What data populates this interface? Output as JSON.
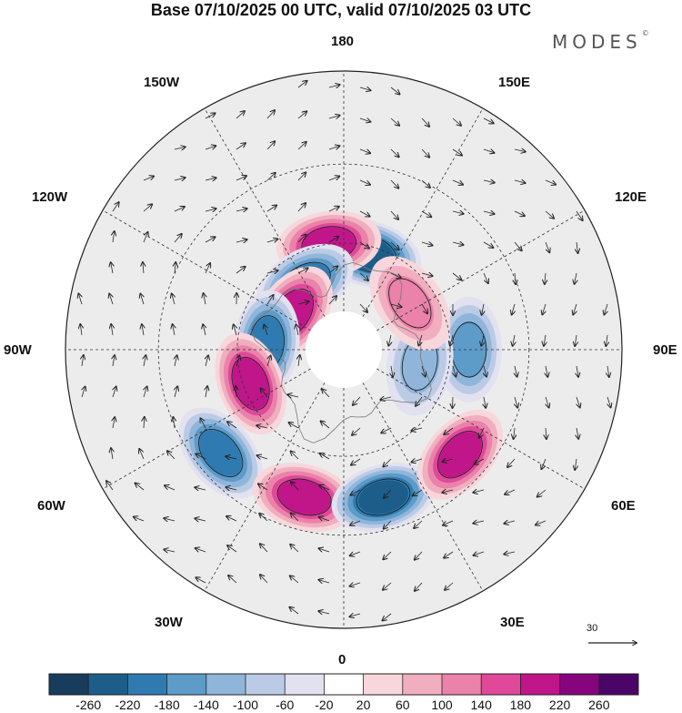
{
  "title": "Base 07/10/2025 00 UTC, valid 07/10/2025 03 UTC",
  "brand": {
    "text": "MODES",
    "mark": "©"
  },
  "longitude_labels": {
    "lon_180": "180",
    "lon_150w": "150W",
    "lon_150e": "150E",
    "lon_120w": "120W",
    "lon_120e": "120E",
    "lon_90w": "90W",
    "lon_90e": "90E",
    "lon_60w": "60W",
    "lon_60e": "60E",
    "lon_30w": "30W",
    "lon_30e": "30E",
    "lon_0": "0"
  },
  "wind_scale": {
    "label": "30",
    "icon": "arrow-right-icon"
  },
  "colorbar": {
    "ticks": [
      "-260",
      "-220",
      "-180",
      "-140",
      "-100",
      "-60",
      "-20",
      "20",
      "60",
      "100",
      "140",
      "180",
      "220",
      "260"
    ],
    "colors": [
      "#173c5c",
      "#1d5d8a",
      "#2f7bb1",
      "#5d9bc9",
      "#8fb6da",
      "#bccbe5",
      "#e1e1f0",
      "#ffffff",
      "#f7d7db",
      "#f0aebf",
      "#ea82a9",
      "#e0499a",
      "#c0168a",
      "#86057e",
      "#4b0468"
    ]
  },
  "anomaly_centers": [
    {
      "id": "neg-east-siberia",
      "lon": 165,
      "lat": 62,
      "value": -220
    },
    {
      "id": "pos-chukotka",
      "lon": -172,
      "lat": 60,
      "value": 180
    },
    {
      "id": "neg-alaska",
      "lon": -150,
      "lat": 68,
      "value": -180
    },
    {
      "id": "pos-beaufort",
      "lon": -125,
      "lat": 72,
      "value": 200
    },
    {
      "id": "neg-canada",
      "lon": -95,
      "lat": 68,
      "value": -180
    },
    {
      "id": "pos-labrador",
      "lon": -70,
      "lat": 62,
      "value": 180
    },
    {
      "id": "neg-atlantic-w",
      "lon": -50,
      "lat": 46,
      "value": -180
    },
    {
      "id": "pos-atlantic",
      "lon": -15,
      "lat": 48,
      "value": 180
    },
    {
      "id": "neg-scandinavia",
      "lon": 15,
      "lat": 48,
      "value": -220
    },
    {
      "id": "pos-russia",
      "lon": 48,
      "lat": 47,
      "value": 200
    },
    {
      "id": "neg-siberia-w",
      "lon": 90,
      "lat": 55,
      "value": -140
    },
    {
      "id": "neg-siberia-c",
      "lon": 80,
      "lat": 68,
      "value": -100
    },
    {
      "id": "pos-siberia-e",
      "lon": 125,
      "lat": 67,
      "value": 120
    }
  ]
}
